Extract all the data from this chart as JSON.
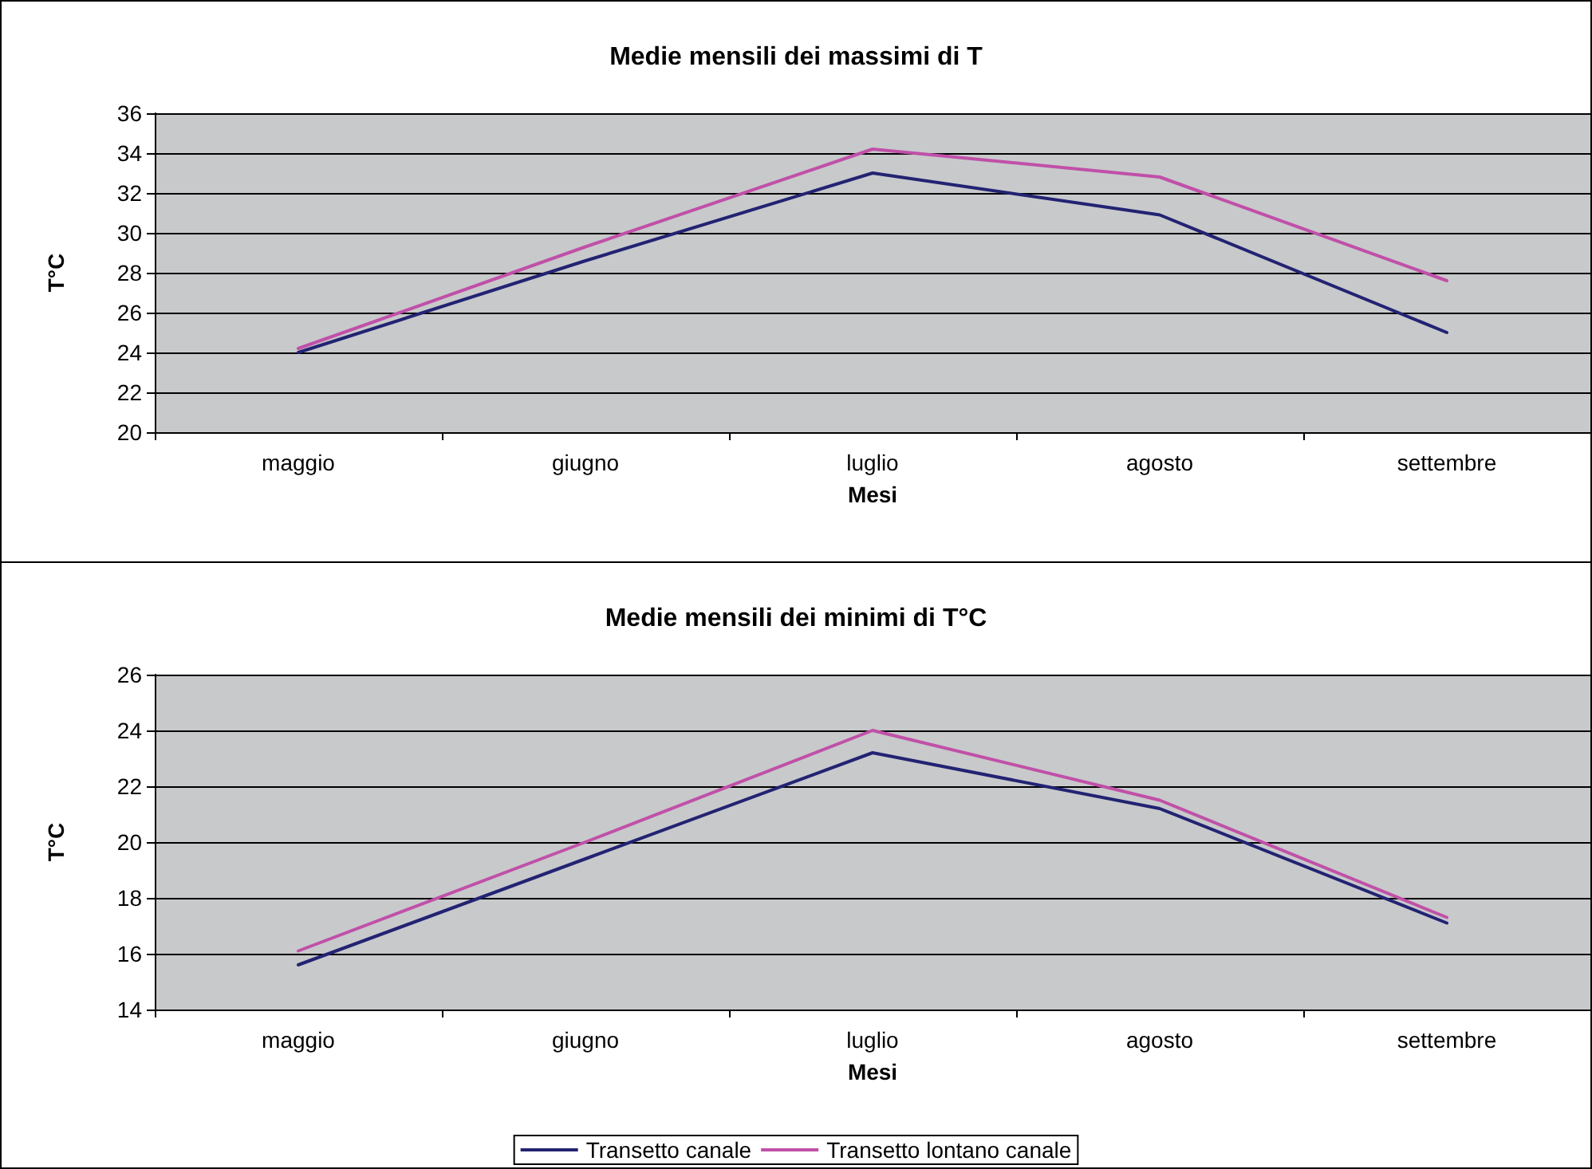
{
  "chart_data": [
    {
      "type": "line",
      "title": "Medie mensili dei massimi di T",
      "xlabel": "Mesi",
      "ylabel": "T°C",
      "categories": [
        "maggio",
        "giugno",
        "luglio",
        "agosto",
        "settembre"
      ],
      "series": [
        {
          "color": "#232373",
          "values": [
            24.0,
            28.6,
            33.0,
            30.9,
            25.0
          ]
        },
        {
          "color": "#c050a8",
          "values": [
            24.2,
            29.3,
            34.2,
            32.8,
            27.6
          ]
        }
      ],
      "ylim": [
        20,
        36
      ],
      "yticks": [
        20,
        22,
        24,
        26,
        28,
        30,
        32,
        34,
        36
      ],
      "grid": "y",
      "legend": false,
      "marker": "none",
      "line_style": "solid"
    },
    {
      "type": "line",
      "title": "Medie mensili dei minimi di T°C",
      "xlabel": "Mesi",
      "ylabel": "T°C",
      "categories": [
        "maggio",
        "giugno",
        "luglio",
        "agosto",
        "settembre"
      ],
      "series": [
        {
          "name": "Transetto canale",
          "color": "#232373",
          "values": [
            15.6,
            19.4,
            23.2,
            21.2,
            17.1
          ]
        },
        {
          "name": "Transetto lontano canale",
          "color": "#c050a8",
          "values": [
            16.1,
            20.0,
            24.0,
            21.5,
            17.3
          ]
        }
      ],
      "ylim": [
        14,
        26
      ],
      "yticks": [
        14,
        16,
        18,
        20,
        22,
        24,
        26
      ],
      "grid": "y",
      "legend": "bottom",
      "marker": "none",
      "line_style": "solid"
    }
  ]
}
